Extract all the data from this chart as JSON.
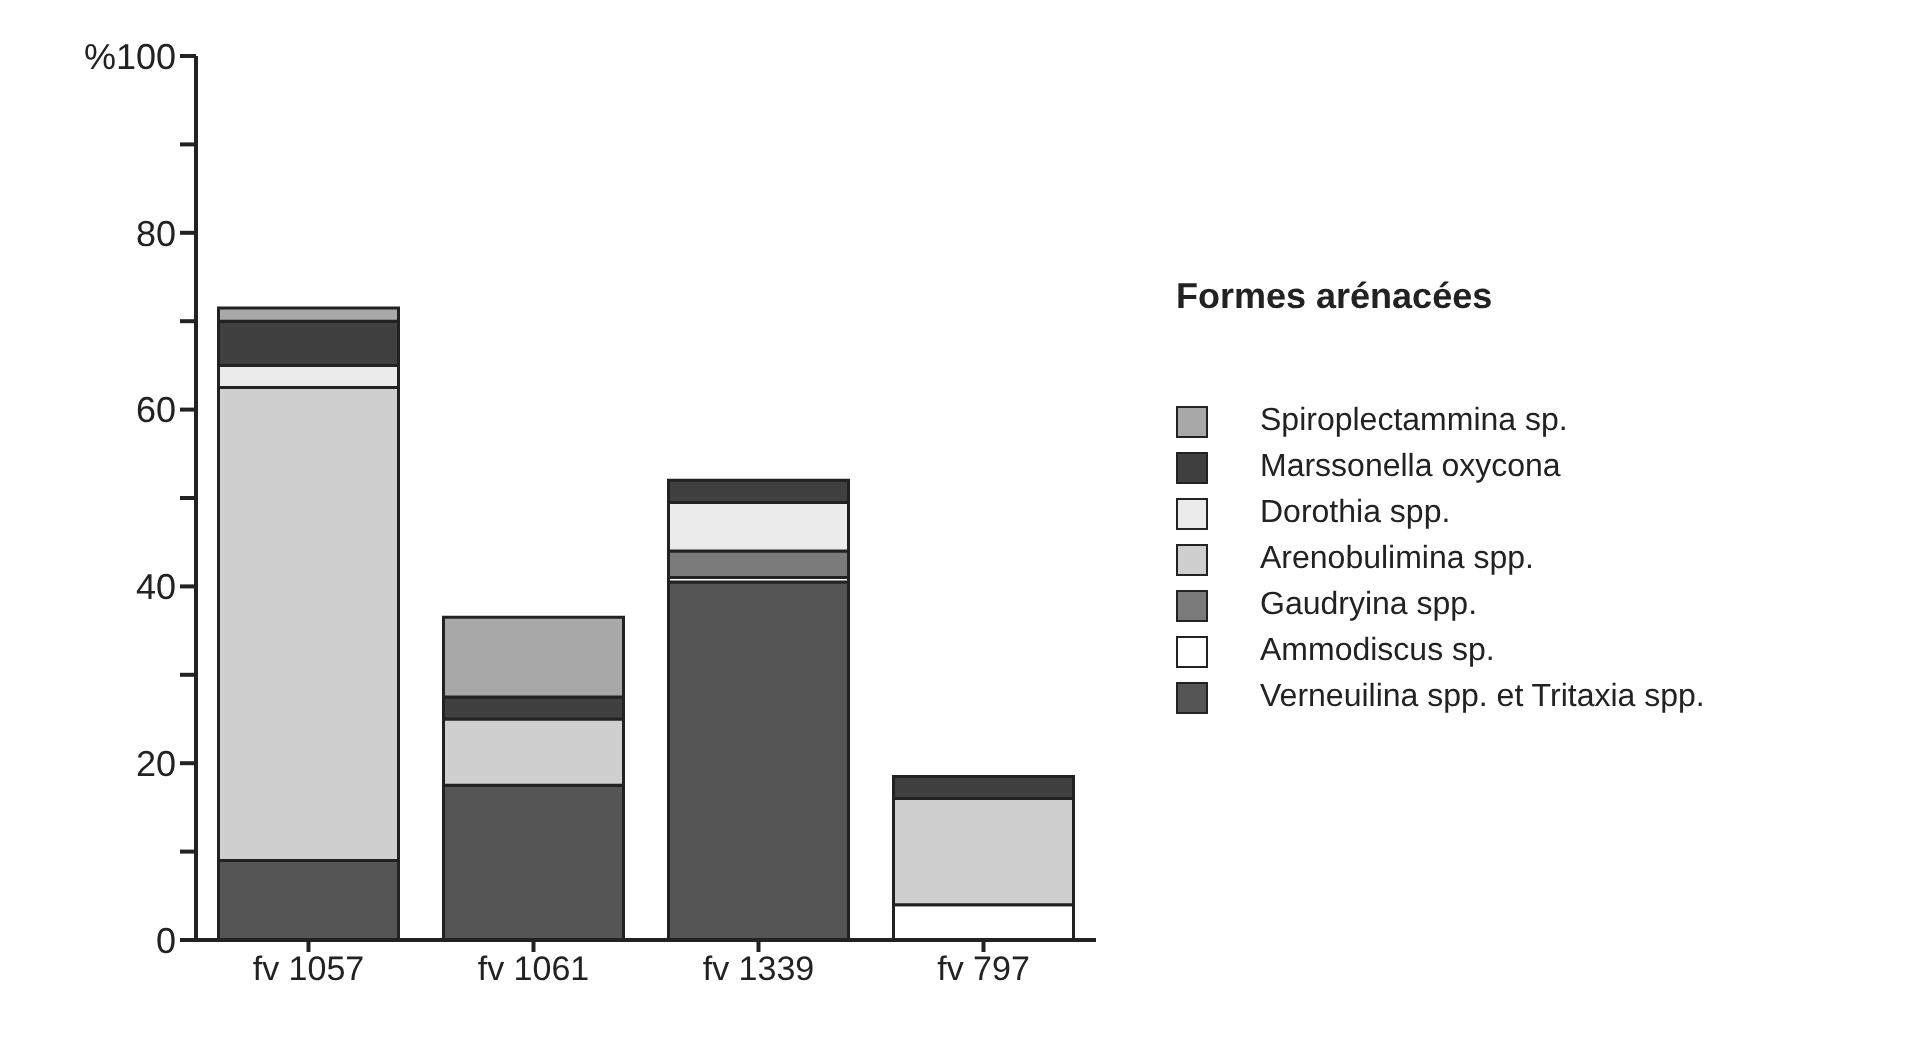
{
  "chart_data": {
    "type": "bar",
    "stacked": true,
    "legend_title": "Formes arénacées",
    "legend": "right",
    "grid": false,
    "categories": [
      "fv 1057",
      "fv 1061",
      "fv 1339",
      "fv 797"
    ],
    "series": [
      {
        "name": "Verneuilina spp. et Tritaxia spp.",
        "color": "#555555",
        "values": [
          9,
          17.5,
          40.5,
          0
        ]
      },
      {
        "name": "Ammodiscus sp.",
        "color": "#ffffff",
        "values": [
          0,
          0,
          0.5,
          4
        ]
      },
      {
        "name": "Gaudryina spp.",
        "color": "#7a7a7a",
        "values": [
          0,
          0,
          3,
          0
        ]
      },
      {
        "name": "Arenobulimina spp.",
        "color": "#cfcfcf",
        "values": [
          53.5,
          7.5,
          0,
          12
        ]
      },
      {
        "name": "Dorothia spp.",
        "color": "#ebebeb",
        "values": [
          2.5,
          0,
          5.5,
          0
        ]
      },
      {
        "name": "Marssonella oxycona",
        "color": "#404040",
        "values": [
          5,
          2.5,
          2.5,
          2.5
        ]
      },
      {
        "name": "Spiroplectammina sp.",
        "color": "#a8a8a8",
        "values": [
          1.5,
          9,
          0,
          0
        ]
      }
    ],
    "ylim": [
      0,
      100
    ],
    "yticks": [
      0,
      {
        "value": 10,
        "label": null
      },
      20,
      {
        "value": 30,
        "label": null
      },
      40,
      {
        "value": 50,
        "label": null
      },
      60,
      {
        "value": 70,
        "label": null
      },
      80,
      {
        "value": 90,
        "label": null
      },
      {
        "value": 100,
        "label": "%100"
      }
    ]
  }
}
